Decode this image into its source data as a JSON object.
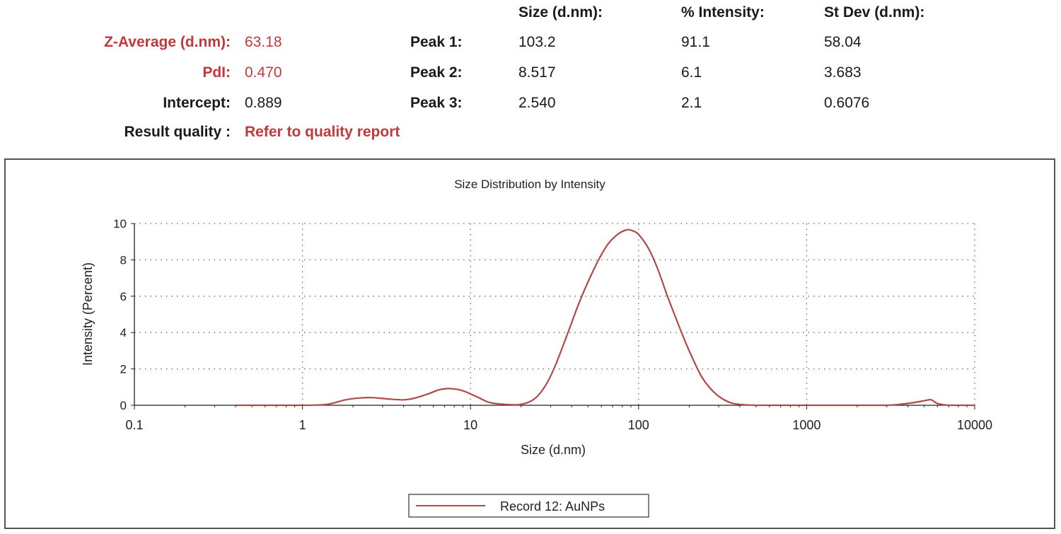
{
  "summary": {
    "header": {
      "size": "Size (d.nm):",
      "intensity": "% Intensity:",
      "stdev": "St Dev (d.nm):"
    },
    "z_average": {
      "label": "Z-Average (d.nm):",
      "value": "63.18"
    },
    "pdi": {
      "label": "PdI:",
      "value": "0.470"
    },
    "intercept": {
      "label": "Intercept:",
      "value": "0.889"
    },
    "result_quality": {
      "label": "Result quality :",
      "value": "Refer to quality report"
    },
    "peaks": [
      {
        "label": "Peak 1:",
        "size": "103.2",
        "intensity": "91.1",
        "stdev": "58.04"
      },
      {
        "label": "Peak 2:",
        "size": "8.517",
        "intensity": "6.1",
        "stdev": "3.683"
      },
      {
        "label": "Peak 3:",
        "size": "2.540",
        "intensity": "2.1",
        "stdev": "0.6076"
      }
    ]
  },
  "chart_data": {
    "type": "line",
    "title": "Size Distribution by Intensity",
    "xlabel": "Size (d.nm)",
    "ylabel": "Intensity (Percent)",
    "x_scale": "log",
    "xlim": [
      0.1,
      10000
    ],
    "ylim": [
      0,
      10
    ],
    "x_ticks": [
      0.1,
      1,
      10,
      100,
      1000,
      10000
    ],
    "x_tick_labels": [
      "0.1",
      "1",
      "10",
      "100",
      "1000",
      "10000"
    ],
    "y_ticks": [
      0,
      2,
      4,
      6,
      8,
      10
    ],
    "y_tick_labels": [
      "0",
      "2",
      "4",
      "6",
      "8",
      "10"
    ],
    "grid": true,
    "legend_position": "bottom-center",
    "line_color": "#b04a4a",
    "series": [
      {
        "name": "Record 12: AuNPs",
        "x": [
          0.4,
          0.6,
          1,
          1.4,
          1.8,
          2.2,
          2.6,
          3.2,
          4,
          4.6,
          5.5,
          6.5,
          7.5,
          9,
          11,
          13,
          16,
          20,
          24,
          28,
          32,
          38,
          45,
          55,
          65,
          75,
          85,
          92,
          100,
          115,
          130,
          150,
          175,
          200,
          240,
          290,
          350,
          420,
          520,
          650,
          1000,
          2000,
          3000,
          4000,
          5000,
          5500,
          6000,
          7000,
          8000,
          9000,
          10000
        ],
        "y": [
          0,
          0,
          0,
          0.05,
          0.3,
          0.4,
          0.42,
          0.35,
          0.3,
          0.38,
          0.6,
          0.85,
          0.92,
          0.8,
          0.45,
          0.15,
          0.05,
          0.05,
          0.35,
          1.1,
          2.2,
          4.0,
          5.8,
          7.6,
          8.8,
          9.4,
          9.65,
          9.6,
          9.4,
          8.6,
          7.5,
          5.9,
          4.3,
          3.0,
          1.5,
          0.6,
          0.15,
          0.03,
          0,
          0,
          0,
          0,
          0,
          0.1,
          0.25,
          0.3,
          0.1,
          0,
          0,
          0,
          0
        ]
      }
    ]
  }
}
